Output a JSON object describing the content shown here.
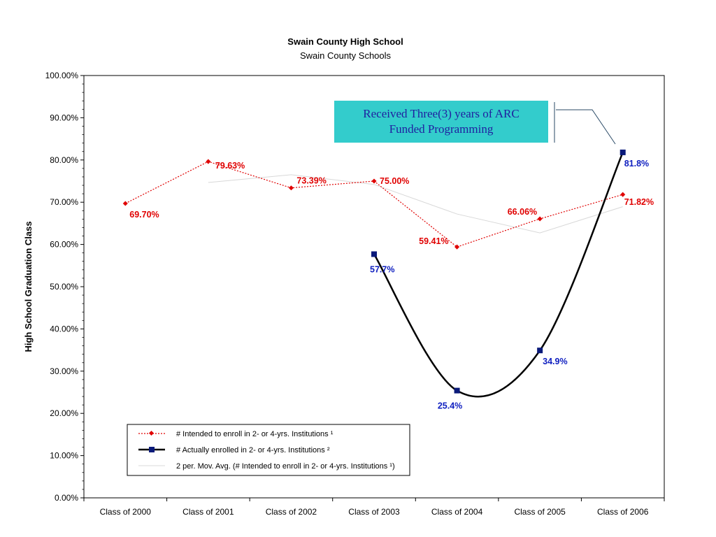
{
  "chart_data": {
    "type": "line",
    "title": "Swain County High School",
    "subtitle": "Swain County Schools",
    "ylabel": "High School Graduation Class",
    "xlabel": "",
    "ylim": [
      0,
      100
    ],
    "yticks": [
      "0.00%",
      "10.00%",
      "20.00%",
      "30.00%",
      "40.00%",
      "50.00%",
      "60.00%",
      "70.00%",
      "80.00%",
      "90.00%",
      "100.00%"
    ],
    "categories": [
      "Class of 2000",
      "Class of 2001",
      "Class of 2002",
      "Class of 2003",
      "Class of 2004",
      "Class of 2005",
      "Class of 2006"
    ],
    "series": [
      {
        "name": "# Intended to enroll in 2- or 4-yrs. Institutions ¹",
        "color": "#e00000",
        "style": "dotted",
        "marker": "diamond",
        "values": [
          69.7,
          79.63,
          73.39,
          75.0,
          59.41,
          66.06,
          71.82
        ],
        "labels": [
          "69.70%",
          "79.63%",
          "73.39%",
          "75.00%",
          "59.41%",
          "66.06%",
          "71.82%"
        ]
      },
      {
        "name": "# Actually enrolled in 2- or 4-yrs. Institutions ²",
        "color": "#000000",
        "marker_color": "#0a1a7a",
        "style": "smooth",
        "marker": "square",
        "values": [
          null,
          null,
          null,
          57.7,
          25.4,
          34.9,
          81.8
        ],
        "labels": [
          "",
          "",
          "",
          "57.7%",
          "25.4%",
          "34.9%",
          "81.8%"
        ]
      },
      {
        "name": "2 per. Mov. Avg. (# Intended to enroll in 2- or 4-yrs. Institutions ¹)",
        "color": "#d8d8d8",
        "style": "solid",
        "marker": "none",
        "values": [
          null,
          74.67,
          76.51,
          74.2,
          67.21,
          62.74,
          68.94
        ]
      }
    ],
    "legend_position": "bottom-left",
    "grid": false
  },
  "callout": {
    "text": "Received Three(3) years of ARC\nFunded Programming"
  }
}
